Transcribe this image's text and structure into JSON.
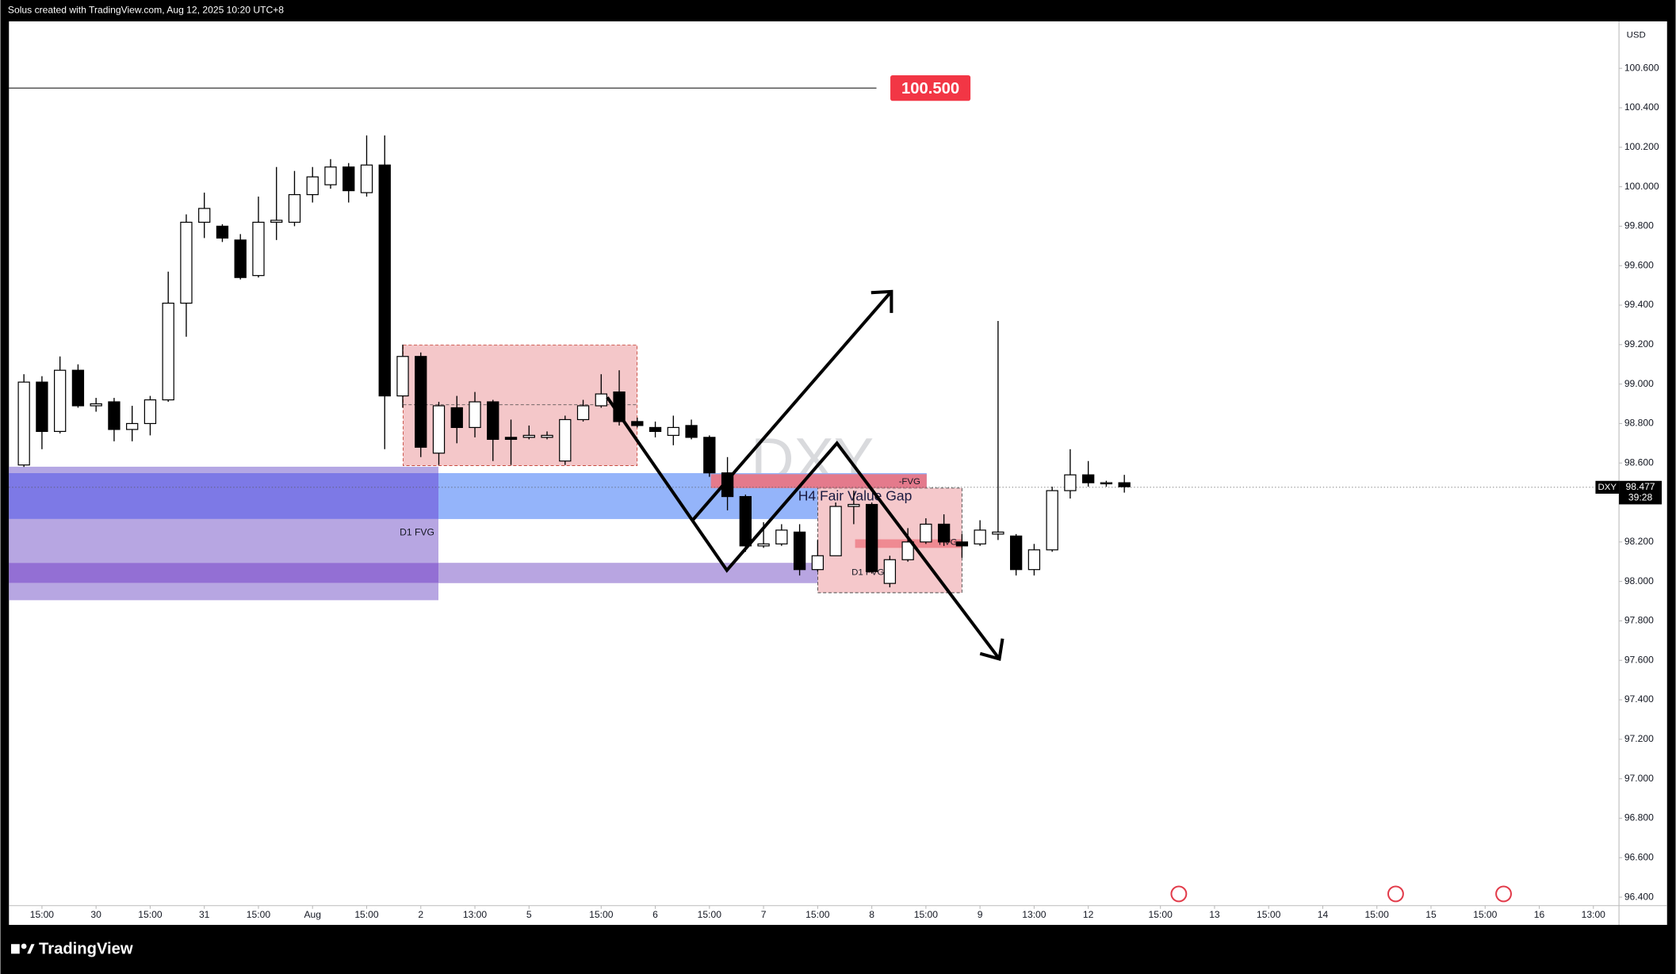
{
  "header": {
    "text": "Solus created with TradingView.com, Aug 12, 2025 10:20 UTC+8"
  },
  "footer": {
    "brand": "TradingView"
  },
  "chart_data": {
    "type": "candlestick",
    "symbol": "DXY",
    "currency": "USD",
    "up_color": "#ffffff",
    "down_color": "#000000",
    "open": [
      98.59,
      99.01,
      98.76,
      99.07,
      98.89,
      98.91,
      98.77,
      98.8,
      98.92,
      99.41,
      99.82,
      99.8,
      99.73,
      99.55,
      99.82,
      99.82,
      99.96,
      100.01,
      100.1,
      99.97,
      100.11,
      98.94,
      99.14,
      98.65,
      98.88,
      98.78,
      98.91,
      98.73,
      98.73,
      98.73,
      98.61,
      98.82,
      98.89,
      98.96,
      98.81,
      98.78,
      98.74,
      98.79,
      98.73,
      98.55,
      98.43,
      98.18,
      98.19,
      98.25,
      98.06,
      98.13,
      98.38,
      98.39,
      97.99,
      98.11,
      98.2,
      98.29,
      98.2,
      98.19,
      98.24,
      98.23,
      98.06,
      98.16,
      98.46,
      98.54,
      98.5,
      98.5
    ],
    "high": [
      99.05,
      99.04,
      99.14,
      99.1,
      98.93,
      98.93,
      98.89,
      98.94,
      99.57,
      99.86,
      99.97,
      99.81,
      99.76,
      99.95,
      100.1,
      100.08,
      100.1,
      100.14,
      100.12,
      100.26,
      100.26,
      99.2,
      99.16,
      98.91,
      98.94,
      98.96,
      98.92,
      98.82,
      98.79,
      98.76,
      98.84,
      98.92,
      99.05,
      99.07,
      98.83,
      98.81,
      98.84,
      98.82,
      98.74,
      98.63,
      98.44,
      98.3,
      98.29,
      98.29,
      98.21,
      98.4,
      98.46,
      98.4,
      98.13,
      98.27,
      98.32,
      98.34,
      98.24,
      98.31,
      99.32,
      98.24,
      98.19,
      98.48,
      98.67,
      98.61,
      98.51,
      98.54
    ],
    "low": [
      98.58,
      98.67,
      98.75,
      98.88,
      98.86,
      98.71,
      98.71,
      98.74,
      98.91,
      99.24,
      99.74,
      99.72,
      99.53,
      99.54,
      99.73,
      99.8,
      99.92,
      99.99,
      99.92,
      99.95,
      98.67,
      98.88,
      98.63,
      98.59,
      98.7,
      98.73,
      98.61,
      98.59,
      98.72,
      98.72,
      98.59,
      98.81,
      98.88,
      98.79,
      98.78,
      98.73,
      98.69,
      98.72,
      98.53,
      98.36,
      98.15,
      98.17,
      98.18,
      98.03,
      98.05,
      98.13,
      98.29,
      98.04,
      97.97,
      98.1,
      98.19,
      98.18,
      98.12,
      98.18,
      98.21,
      98.03,
      98.03,
      98.15,
      98.42,
      98.48,
      98.48,
      98.45
    ],
    "close": [
      99.01,
      98.76,
      99.07,
      98.89,
      98.9,
      98.77,
      98.8,
      98.92,
      99.41,
      99.82,
      99.89,
      99.74,
      99.54,
      99.82,
      99.83,
      99.96,
      100.05,
      100.1,
      99.98,
      100.11,
      98.94,
      99.14,
      98.68,
      98.89,
      98.78,
      98.91,
      98.72,
      98.72,
      98.74,
      98.74,
      98.82,
      98.89,
      98.95,
      98.81,
      98.79,
      98.76,
      98.78,
      98.73,
      98.55,
      98.43,
      98.18,
      98.19,
      98.26,
      98.06,
      98.13,
      98.38,
      98.39,
      98.05,
      98.11,
      98.2,
      98.29,
      98.2,
      98.18,
      98.26,
      98.25,
      98.06,
      98.16,
      98.46,
      98.54,
      98.5,
      98.5,
      98.48
    ],
    "xlim": [
      -0.83,
      88.42
    ],
    "xticks": [
      {
        "value": 1,
        "label": "15:00"
      },
      {
        "value": 4,
        "label": "30"
      },
      {
        "value": 7,
        "label": "15:00"
      },
      {
        "value": 10,
        "label": "31"
      },
      {
        "value": 13,
        "label": "15:00"
      },
      {
        "value": 16,
        "label": "Aug"
      },
      {
        "value": 19,
        "label": "15:00"
      },
      {
        "value": 22,
        "label": "2"
      },
      {
        "value": 25,
        "label": "13:00"
      },
      {
        "value": 28,
        "label": "5"
      },
      {
        "value": 32,
        "label": "15:00"
      },
      {
        "value": 35,
        "label": "6"
      },
      {
        "value": 38,
        "label": "15:00"
      },
      {
        "value": 41,
        "label": "7"
      },
      {
        "value": 44,
        "label": "15:00"
      },
      {
        "value": 47,
        "label": "8"
      },
      {
        "value": 50,
        "label": "15:00"
      },
      {
        "value": 53,
        "label": "9"
      },
      {
        "value": 56,
        "label": "13:00"
      },
      {
        "value": 59,
        "label": "12"
      },
      {
        "value": 63,
        "label": "15:00"
      },
      {
        "value": 66,
        "label": "13"
      },
      {
        "value": 69,
        "label": "15:00"
      },
      {
        "value": 72,
        "label": "14"
      },
      {
        "value": 75,
        "label": "15:00"
      },
      {
        "value": 78,
        "label": "15"
      },
      {
        "value": 81,
        "label": "15:00"
      },
      {
        "value": 84,
        "label": "16"
      },
      {
        "value": 87,
        "label": "13:00"
      }
    ],
    "ylim": [
      96.357,
      100.838
    ],
    "yticks": [
      {
        "value": 96.4,
        "label": "96.400"
      },
      {
        "value": 96.6,
        "label": "96.600"
      },
      {
        "value": 96.8,
        "label": "96.800"
      },
      {
        "value": 97.0,
        "label": "97.000"
      },
      {
        "value": 97.2,
        "label": "97.200"
      },
      {
        "value": 97.4,
        "label": "97.400"
      },
      {
        "value": 97.6,
        "label": "97.600"
      },
      {
        "value": 97.8,
        "label": "97.800"
      },
      {
        "value": 98.0,
        "label": "98.000"
      },
      {
        "value": 98.2,
        "label": "98.200"
      },
      {
        "value": 98.6,
        "label": "98.600"
      },
      {
        "value": 98.8,
        "label": "98.800"
      },
      {
        "value": 99.0,
        "label": "99.000"
      },
      {
        "value": 99.2,
        "label": "99.200"
      },
      {
        "value": 99.4,
        "label": "99.400"
      },
      {
        "value": 99.6,
        "label": "99.600"
      },
      {
        "value": 99.8,
        "label": "99.800"
      },
      {
        "value": 100.0,
        "label": "100.000"
      },
      {
        "value": 100.2,
        "label": "100.200"
      },
      {
        "value": 100.4,
        "label": "100.400"
      },
      {
        "value": 100.6,
        "label": "100.600"
      }
    ],
    "level_line": {
      "value": 100.5,
      "label": "100.500",
      "color": "#f23645"
    },
    "last_price": {
      "value": 98.477,
      "countdown": "39:28"
    },
    "annotations": [
      "D1 FVG",
      "H4 Fair Value Gap",
      "-FVG",
      "D1 FVG",
      "FVG"
    ]
  }
}
